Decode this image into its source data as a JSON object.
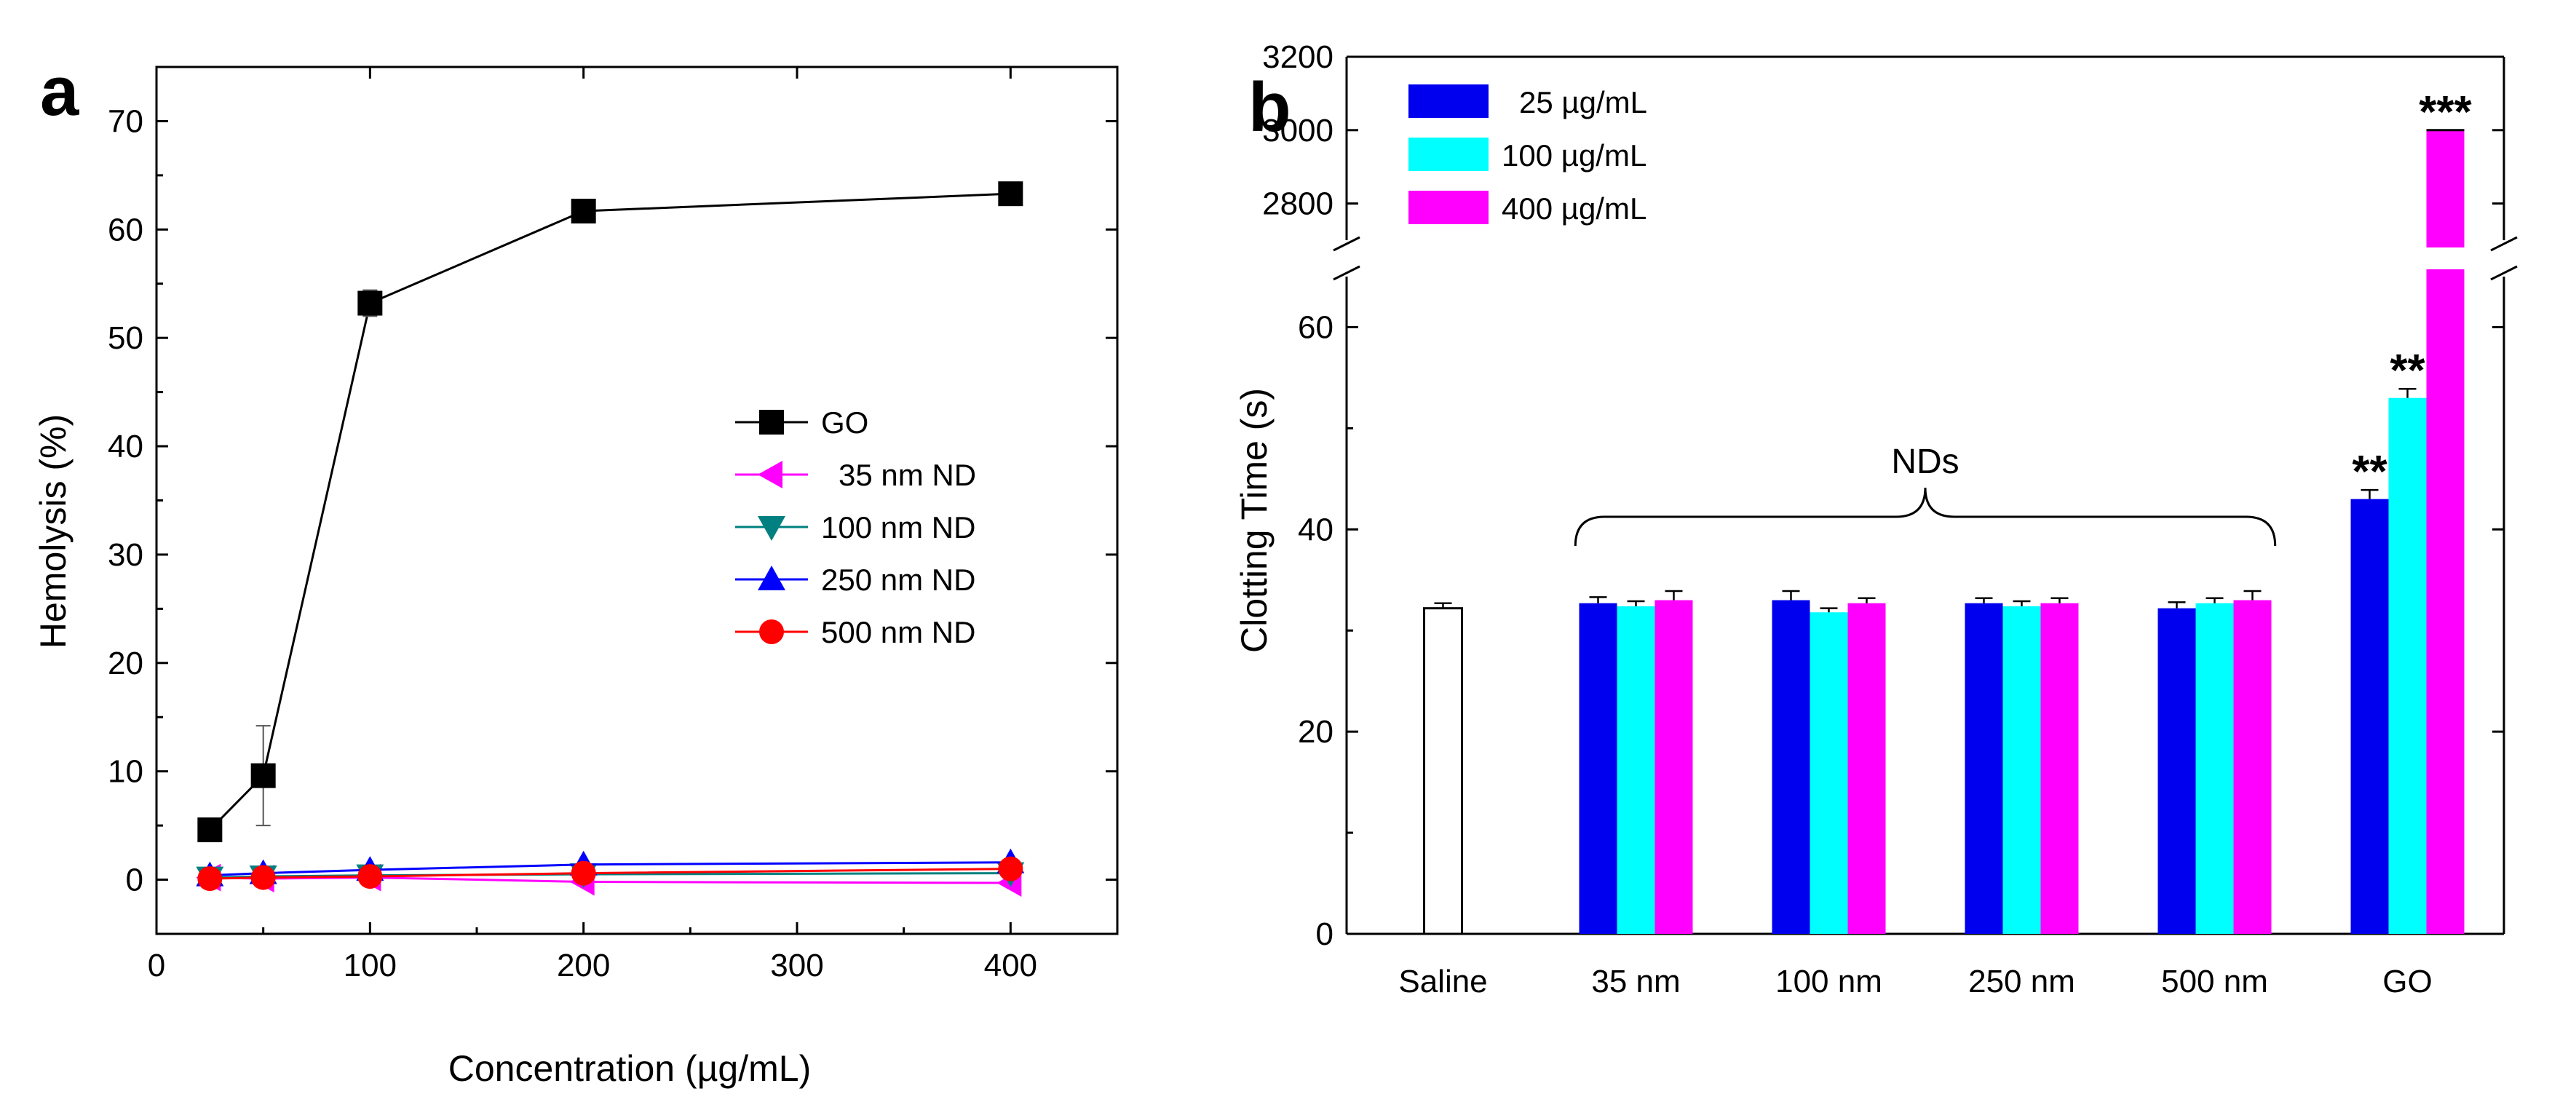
{
  "chart_data": [
    {
      "panel": "a",
      "type": "line",
      "title": "",
      "xlabel": "Concentration (µg/mL)",
      "ylabel": "Hemolysis (%)",
      "xlim": [
        0,
        450
      ],
      "ylim": [
        -5,
        75
      ],
      "xticks": [
        0,
        100,
        200,
        300,
        400
      ],
      "yticks": [
        0,
        10,
        20,
        30,
        40,
        50,
        60,
        70
      ],
      "x": [
        25,
        50,
        100,
        200,
        400
      ],
      "legend_position": "center-right",
      "series": [
        {
          "name": "GO",
          "color": "#000000",
          "marker": "square",
          "values": [
            4.6,
            9.6,
            53.2,
            61.7,
            63.3
          ],
          "errors": [
            0.3,
            4.6,
            1.2,
            0.5,
            0.4
          ]
        },
        {
          "name": "35 nm ND",
          "color": "#ff00ff",
          "marker": "triangle-left",
          "values": [
            0.2,
            0.1,
            0.2,
            -0.2,
            -0.3
          ],
          "errors": [
            0.1,
            0.1,
            0.1,
            0.1,
            0.1
          ]
        },
        {
          "name": "100 nm ND",
          "color": "#008080",
          "marker": "triangle-down",
          "values": [
            0.2,
            0.3,
            0.4,
            0.5,
            0.6
          ],
          "errors": [
            0.1,
            0.1,
            0.1,
            0.1,
            0.1
          ]
        },
        {
          "name": "250 nm ND",
          "color": "#0000ff",
          "marker": "triangle-up",
          "values": [
            0.4,
            0.6,
            0.9,
            1.4,
            1.6
          ],
          "errors": [
            0.1,
            0.1,
            0.1,
            0.1,
            0.1
          ]
        },
        {
          "name": "500 nm ND",
          "color": "#ff0000",
          "marker": "circle",
          "values": [
            0.1,
            0.2,
            0.3,
            0.6,
            1.0
          ],
          "errors": [
            0.1,
            0.1,
            0.1,
            0.1,
            0.1
          ]
        }
      ]
    },
    {
      "panel": "b",
      "type": "bar",
      "title": "",
      "xlabel": "",
      "ylabel": "Clotting Time (s)",
      "ylim_lower": [
        0,
        65
      ],
      "ylim_upper": [
        2700,
        3200
      ],
      "yticks_lower": [
        0,
        20,
        40,
        60
      ],
      "yticks_upper": [
        2800,
        3000,
        3200
      ],
      "axis_break": true,
      "categories": [
        "Saline",
        "35 nm",
        "100 nm",
        "250 nm",
        "500 nm",
        "GO"
      ],
      "legend_position": "top-left",
      "saline": {
        "value": 32.2,
        "error": 0.5
      },
      "series": [
        {
          "name": "25 µg/mL",
          "color": "#0000ee",
          "values": [
            null,
            32.7,
            33.0,
            32.7,
            32.2,
            43.0
          ],
          "errors": [
            null,
            0.6,
            0.9,
            0.5,
            0.6,
            0.9
          ]
        },
        {
          "name": "100 µg/mL",
          "color": "#00ffff",
          "values": [
            null,
            32.4,
            31.8,
            32.4,
            32.7,
            53.0
          ],
          "errors": [
            null,
            0.5,
            0.4,
            0.5,
            0.5,
            0.9
          ]
        },
        {
          "name": "400 µg/mL",
          "color": "#ff00ff",
          "values": [
            null,
            33.0,
            32.7,
            32.7,
            33.0,
            3000
          ],
          "errors": [
            null,
            0.9,
            0.5,
            0.5,
            0.9,
            0
          ]
        }
      ],
      "annotations": {
        "group_brace_label": "NDs",
        "significance": [
          {
            "category": "GO",
            "series": "25 µg/mL",
            "text": "**"
          },
          {
            "category": "GO",
            "series": "100 µg/mL",
            "text": "**"
          },
          {
            "category": "GO",
            "series": "400 µg/mL",
            "text": "***"
          }
        ]
      }
    }
  ]
}
